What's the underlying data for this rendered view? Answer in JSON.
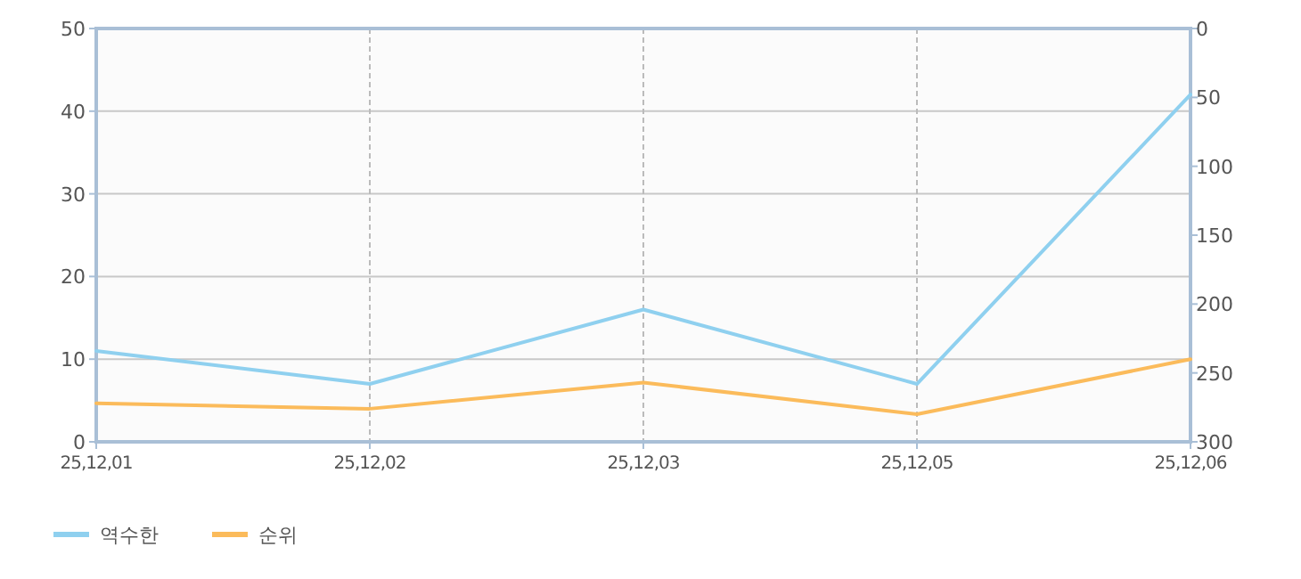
{
  "chart_data": {
    "type": "line",
    "categories": [
      "25,12,01",
      "25,12,02",
      "25,12,03",
      "25,12,05",
      "25,12,06"
    ],
    "series": [
      {
        "name": "역수한",
        "color": "#8fd0ef",
        "values": [
          11,
          7,
          16,
          7,
          42
        ]
      },
      {
        "name": "순위",
        "color": "#fbbb5b",
        "axis": "y2",
        "values": [
          272,
          276,
          257,
          280,
          240
        ]
      }
    ],
    "ylim": [
      0,
      50
    ],
    "yticks": [
      0,
      10,
      20,
      30,
      40,
      50
    ],
    "y2lim": [
      300,
      0
    ],
    "y2ticks": [
      0,
      50,
      100,
      150,
      200,
      250,
      300
    ],
    "grid": true,
    "legend": "bottom left",
    "marker": "none",
    "line_style": "solid"
  }
}
